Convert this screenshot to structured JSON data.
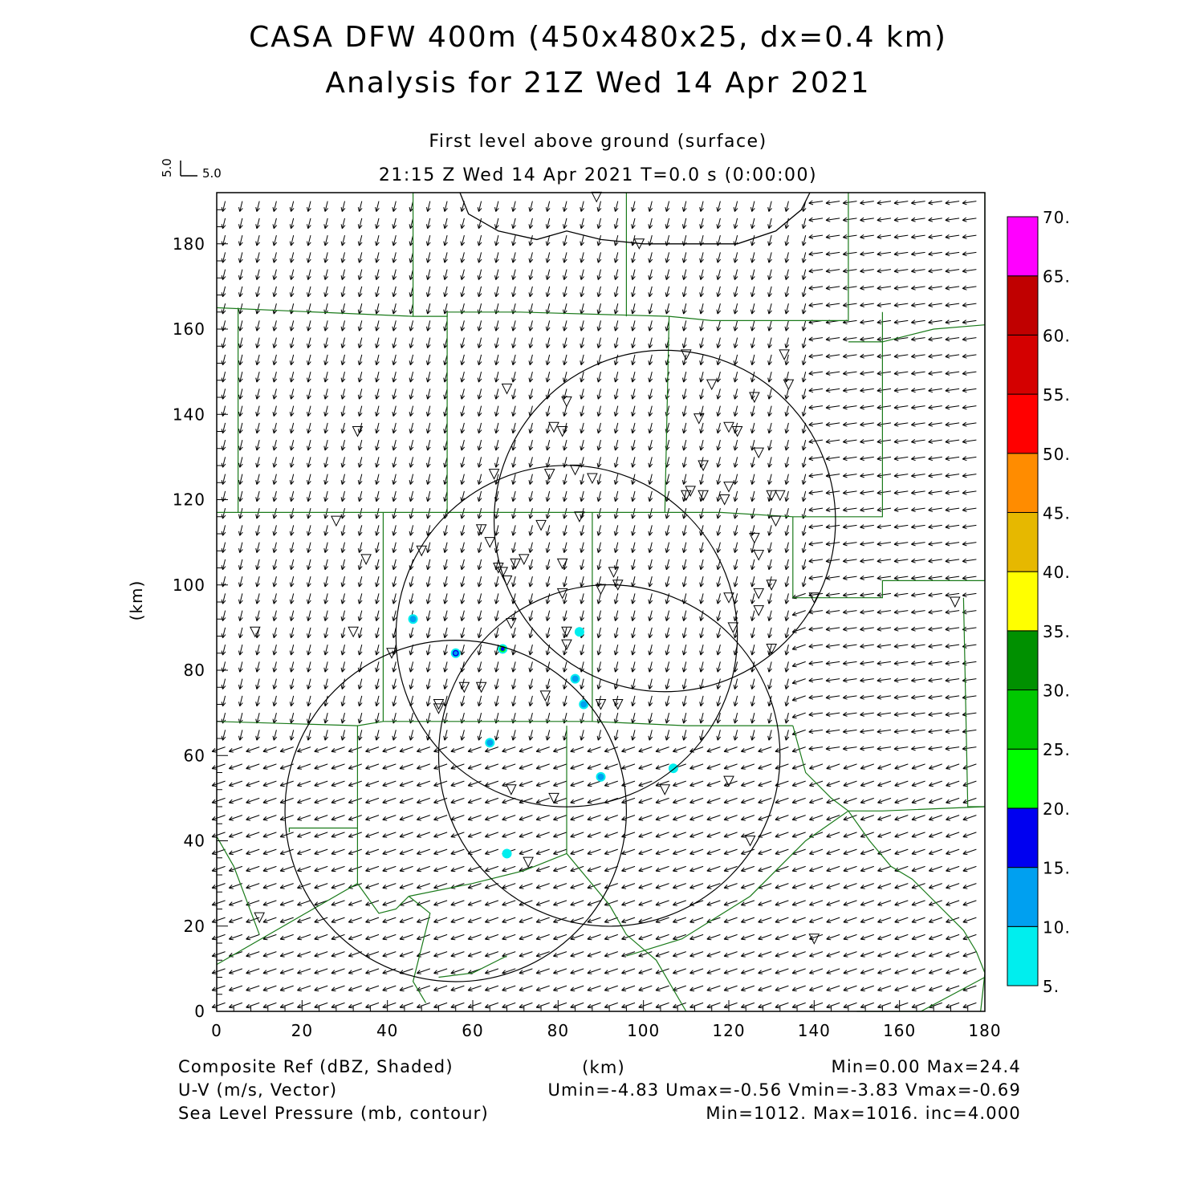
{
  "header": {
    "title_line1": "CASA DFW 400m (450x480x25, dx=0.4 km)",
    "title_line2": "Analysis for 21Z Wed 14 Apr 2021",
    "level": "First level above ground (surface)",
    "time": "21:15 Z Wed 14 Apr 2021    T=0.0 s (0:00:00)"
  },
  "vector_key": {
    "u_label": "5.0",
    "v_label": "5.0"
  },
  "chart_data": {
    "type": "map",
    "x_axis": {
      "label": "(km)",
      "range": [
        0,
        180
      ],
      "ticks": [
        0,
        20,
        40,
        60,
        80,
        100,
        120,
        140,
        160,
        180
      ]
    },
    "y_axis": {
      "label": "(km)",
      "range": [
        0,
        192
      ],
      "ticks": [
        0,
        20,
        40,
        60,
        80,
        100,
        120,
        140,
        160,
        180
      ]
    },
    "colorbar": {
      "labels": [
        "5.",
        "10.",
        "15.",
        "20.",
        "25.",
        "30.",
        "35.",
        "40.",
        "45.",
        "50.",
        "55.",
        "60.",
        "65.",
        "70."
      ],
      "colors": [
        "#00eeee",
        "#00a0f0",
        "#0000f0",
        "#00ff00",
        "#00c800",
        "#009000",
        "#ffff00",
        "#e6b800",
        "#ff8c00",
        "#ff0000",
        "#d40000",
        "#c00000",
        "#ff00ff"
      ]
    },
    "radar_rings": [
      {
        "cx": 105,
        "cy": 115,
        "r": 40
      },
      {
        "cx": 82,
        "cy": 88,
        "r": 40
      },
      {
        "cx": 92,
        "cy": 60,
        "r": 40
      },
      {
        "cx": 56,
        "cy": 47,
        "r": 40
      }
    ],
    "pressure_contour": [
      [
        57,
        192
      ],
      [
        59,
        187
      ],
      [
        66,
        183
      ],
      [
        75,
        181
      ],
      [
        82,
        183
      ],
      [
        90,
        181
      ],
      [
        100,
        180
      ],
      [
        111,
        180
      ],
      [
        122,
        180
      ],
      [
        131,
        183
      ],
      [
        137,
        188
      ],
      [
        139,
        192
      ]
    ],
    "county_boundaries": [
      [
        [
          0,
          165
        ],
        [
          46,
          163
        ],
        [
          54,
          163
        ],
        [
          54,
          164
        ],
        [
          71,
          164
        ],
        [
          106,
          163
        ],
        [
          116,
          162
        ],
        [
          148,
          162
        ],
        [
          148,
          192
        ]
      ],
      [
        [
          46,
          163
        ],
        [
          46,
          192
        ]
      ],
      [
        [
          96,
          163
        ],
        [
          96,
          192
        ]
      ],
      [
        [
          5,
          117
        ],
        [
          5,
          165
        ]
      ],
      [
        [
          54,
          117
        ],
        [
          54,
          164
        ]
      ],
      [
        [
          0,
          117
        ],
        [
          39,
          117
        ],
        [
          54,
          117
        ],
        [
          76,
          117
        ],
        [
          88,
          117
        ],
        [
          105,
          117
        ],
        [
          118,
          117
        ],
        [
          135,
          116
        ],
        [
          156,
          116
        ],
        [
          156,
          164
        ]
      ],
      [
        [
          148,
          157
        ],
        [
          156,
          157
        ],
        [
          168,
          160
        ],
        [
          180,
          161
        ]
      ],
      [
        [
          39,
          68
        ],
        [
          39,
          117
        ]
      ],
      [
        [
          88,
          68
        ],
        [
          88,
          117
        ]
      ],
      [
        [
          105,
          117
        ],
        [
          106,
          163
        ]
      ],
      [
        [
          135,
          97
        ],
        [
          135,
          116
        ]
      ],
      [
        [
          135,
          97
        ],
        [
          156,
          97
        ],
        [
          156,
          101
        ],
        [
          180,
          101
        ],
        [
          180,
          192
        ]
      ],
      [
        [
          0,
          68
        ],
        [
          33,
          67
        ],
        [
          39,
          68
        ],
        [
          88,
          68
        ],
        [
          110,
          67
        ],
        [
          122,
          67
        ],
        [
          135,
          67
        ]
      ],
      [
        [
          33,
          67
        ],
        [
          33,
          43
        ],
        [
          17,
          43
        ],
        [
          17,
          42
        ]
      ],
      [
        [
          33,
          43
        ],
        [
          33,
          30
        ],
        [
          0,
          11
        ]
      ],
      [
        [
          0,
          41
        ],
        [
          4,
          34
        ],
        [
          10,
          18
        ]
      ],
      [
        [
          33,
          30
        ],
        [
          38,
          23
        ],
        [
          42,
          24
        ],
        [
          45,
          27
        ]
      ],
      [
        [
          82,
          67
        ],
        [
          82,
          37
        ],
        [
          92,
          25
        ],
        [
          96,
          18
        ],
        [
          103,
          12
        ],
        [
          110,
          0
        ]
      ],
      [
        [
          45,
          27
        ],
        [
          50,
          23
        ],
        [
          46,
          7
        ],
        [
          49,
          2
        ]
      ],
      [
        [
          52,
          8
        ],
        [
          60,
          9
        ],
        [
          68,
          13
        ]
      ],
      [
        [
          82,
          37
        ],
        [
          72,
          33
        ],
        [
          60,
          30
        ],
        [
          45,
          27
        ]
      ],
      [
        [
          96,
          13
        ],
        [
          109,
          17
        ],
        [
          125,
          27
        ],
        [
          138,
          40
        ],
        [
          148,
          47
        ],
        [
          156,
          47
        ],
        [
          180,
          48
        ]
      ],
      [
        [
          135,
          67
        ],
        [
          138,
          56
        ],
        [
          144,
          50
        ],
        [
          148,
          47
        ]
      ],
      [
        [
          148,
          47
        ],
        [
          153,
          40
        ],
        [
          158,
          34
        ],
        [
          163,
          31
        ],
        [
          170,
          24
        ],
        [
          175,
          19
        ],
        [
          178,
          14
        ],
        [
          180,
          9
        ],
        [
          179,
          0
        ]
      ],
      [
        [
          150,
          0
        ],
        [
          165,
          0
        ],
        [
          180,
          8
        ]
      ],
      [
        [
          175,
          97
        ],
        [
          176,
          48
        ],
        [
          180,
          48
        ]
      ]
    ],
    "stations": [
      [
        89,
        191
      ],
      [
        99,
        180
      ],
      [
        33,
        136
      ],
      [
        68,
        146
      ],
      [
        82,
        143
      ],
      [
        110,
        154
      ],
      [
        116,
        147
      ],
      [
        126,
        144
      ],
      [
        133,
        154
      ],
      [
        134,
        147
      ],
      [
        113,
        139
      ],
      [
        120,
        137
      ],
      [
        122,
        136
      ],
      [
        127,
        131
      ],
      [
        79,
        137
      ],
      [
        81,
        136
      ],
      [
        65,
        126
      ],
      [
        78,
        126
      ],
      [
        84,
        127
      ],
      [
        88,
        125
      ],
      [
        114,
        128
      ],
      [
        110,
        121
      ],
      [
        111,
        122
      ],
      [
        114,
        121
      ],
      [
        119,
        120
      ],
      [
        120,
        123
      ],
      [
        130,
        121
      ],
      [
        132,
        121
      ],
      [
        126,
        111
      ],
      [
        127,
        107
      ],
      [
        131,
        115
      ],
      [
        28,
        115
      ],
      [
        35,
        106
      ],
      [
        48,
        108
      ],
      [
        62,
        113
      ],
      [
        64,
        110
      ],
      [
        76,
        114
      ],
      [
        85,
        116
      ],
      [
        67,
        103
      ],
      [
        66,
        104
      ],
      [
        68,
        101
      ],
      [
        70,
        105
      ],
      [
        72,
        106
      ],
      [
        81,
        105
      ],
      [
        93,
        103
      ],
      [
        94,
        100
      ],
      [
        90,
        99
      ],
      [
        81,
        98
      ],
      [
        120,
        97
      ],
      [
        127,
        98
      ],
      [
        127,
        94
      ],
      [
        130,
        100
      ],
      [
        140,
        97
      ],
      [
        173,
        96
      ],
      [
        9,
        89
      ],
      [
        32,
        89
      ],
      [
        41,
        84
      ],
      [
        69,
        91
      ],
      [
        82,
        89
      ],
      [
        82,
        86
      ],
      [
        121,
        90
      ],
      [
        130,
        85
      ],
      [
        58,
        76
      ],
      [
        62,
        76
      ],
      [
        52,
        72
      ],
      [
        52,
        71
      ],
      [
        77,
        74
      ],
      [
        90,
        72
      ],
      [
        94,
        72
      ],
      [
        69,
        52
      ],
      [
        79,
        50
      ],
      [
        105,
        52
      ],
      [
        120,
        54
      ],
      [
        125,
        40
      ],
      [
        73,
        35
      ],
      [
        10,
        22
      ],
      [
        140,
        17
      ]
    ],
    "echoes": [
      {
        "x": 46,
        "y": 92,
        "dbz": 12
      },
      {
        "x": 56,
        "y": 84,
        "dbz": 17
      },
      {
        "x": 67,
        "y": 85,
        "dbz": 22
      },
      {
        "x": 85,
        "y": 89,
        "dbz": 8
      },
      {
        "x": 84,
        "y": 78,
        "dbz": 12
      },
      {
        "x": 86,
        "y": 72,
        "dbz": 11
      },
      {
        "x": 64,
        "y": 63,
        "dbz": 12
      },
      {
        "x": 90,
        "y": 55,
        "dbz": 12
      },
      {
        "x": 107,
        "y": 57,
        "dbz": 6
      },
      {
        "x": 68,
        "y": 37,
        "dbz": 8
      }
    ],
    "wind": {
      "grid_step_km": 4,
      "north_region": {
        "u": -0.9,
        "v": -3.6
      },
      "south_region": {
        "u": -4.6,
        "v": -1.6
      },
      "east_region": {
        "u": -4.8,
        "v": -0.7
      }
    }
  },
  "footer": {
    "x_unit": "(km)",
    "left": [
      "Composite Ref (dBZ, Shaded)",
      "U-V (m/s, Vector)",
      "Sea Level Pressure (mb, contour)"
    ],
    "right": [
      "Min=0.00 Max=24.4",
      "Umin=-4.83 Umax=-0.56 Vmin=-3.83 Vmax=-0.69",
      "Min=1012. Max=1016. inc=4.000"
    ]
  }
}
